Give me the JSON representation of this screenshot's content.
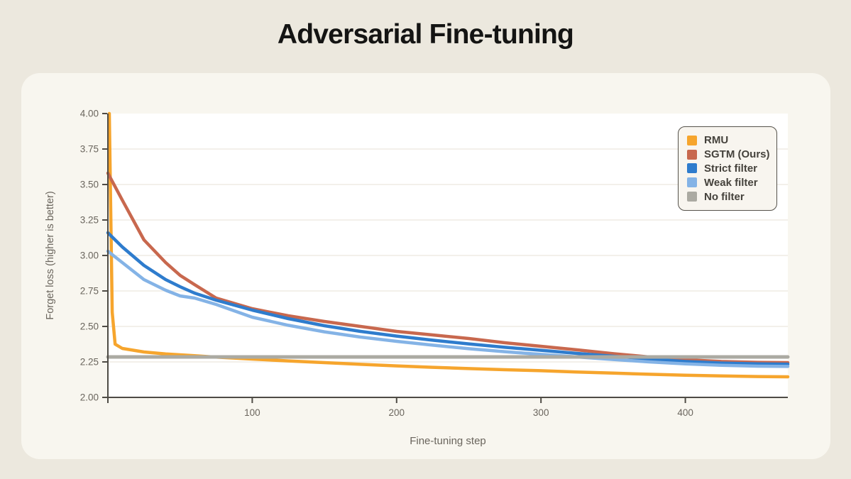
{
  "title": "Adversarial Fine-tuning",
  "chart_data": {
    "type": "line",
    "title": "Adversarial Fine-tuning",
    "xlabel": "Fine-tuning step",
    "ylabel": "Forget loss (higher is better)",
    "xlim": [
      0,
      471
    ],
    "ylim": [
      2.0,
      4.0
    ],
    "xticks": [
      100,
      200,
      300,
      400
    ],
    "xtick_labels": [
      "100",
      "200",
      "300",
      "400"
    ],
    "yticks": [
      4.0,
      3.75,
      3.5,
      3.25,
      3.0,
      2.75,
      2.5,
      2.25,
      2.0
    ],
    "ytick_labels": [
      "4.00",
      "3.75",
      "3.50",
      "3.25",
      "3.00",
      "2.75",
      "2.50",
      "2.25",
      "2.00"
    ],
    "grid": "horizontal",
    "legend_position": "top-right",
    "series": [
      {
        "name": "RMU",
        "color": "#F6A52D",
        "x": [
          1,
          3,
          5,
          10,
          25,
          40,
          50,
          60,
          75,
          100,
          125,
          150,
          175,
          200,
          225,
          250,
          275,
          300,
          325,
          350,
          375,
          400,
          425,
          450,
          471
        ],
        "y": [
          4.0,
          2.6,
          2.375,
          2.345,
          2.32,
          2.306,
          2.3,
          2.294,
          2.284,
          2.27,
          2.257,
          2.245,
          2.233,
          2.222,
          2.212,
          2.203,
          2.195,
          2.188,
          2.179,
          2.171,
          2.163,
          2.156,
          2.151,
          2.147,
          2.145
        ]
      },
      {
        "name": "SGTM (Ours)",
        "color": "#C8684E",
        "x": [
          0,
          10,
          25,
          40,
          50,
          60,
          75,
          100,
          125,
          150,
          175,
          200,
          225,
          250,
          275,
          300,
          325,
          350,
          375,
          400,
          425,
          450,
          471
        ],
        "y": [
          3.58,
          3.39,
          3.11,
          2.95,
          2.86,
          2.795,
          2.7,
          2.625,
          2.575,
          2.535,
          2.5,
          2.465,
          2.44,
          2.415,
          2.385,
          2.36,
          2.335,
          2.308,
          2.285,
          2.265,
          2.253,
          2.247,
          2.245
        ]
      },
      {
        "name": "Strict filter",
        "color": "#2E7CCD",
        "x": [
          0,
          10,
          25,
          40,
          50,
          60,
          75,
          100,
          125,
          150,
          175,
          200,
          225,
          250,
          275,
          300,
          325,
          350,
          375,
          400,
          425,
          450,
          471
        ],
        "y": [
          3.16,
          3.06,
          2.93,
          2.83,
          2.78,
          2.735,
          2.685,
          2.615,
          2.555,
          2.505,
          2.465,
          2.432,
          2.403,
          2.377,
          2.353,
          2.332,
          2.31,
          2.29,
          2.27,
          2.253,
          2.242,
          2.236,
          2.234
        ]
      },
      {
        "name": "Weak filter",
        "color": "#84B3E6",
        "x": [
          0,
          10,
          25,
          40,
          50,
          60,
          75,
          100,
          125,
          150,
          175,
          200,
          225,
          250,
          275,
          300,
          325,
          350,
          375,
          400,
          425,
          450,
          471
        ],
        "y": [
          3.03,
          2.95,
          2.83,
          2.755,
          2.715,
          2.7,
          2.655,
          2.565,
          2.508,
          2.462,
          2.425,
          2.395,
          2.368,
          2.343,
          2.322,
          2.303,
          2.285,
          2.267,
          2.25,
          2.236,
          2.226,
          2.22,
          2.218
        ]
      },
      {
        "name": "No filter",
        "color": "#ABAAA2",
        "x": [
          0,
          471
        ],
        "y": [
          2.285,
          2.285
        ]
      }
    ]
  },
  "colors": {
    "page_background": "#ECE8DE",
    "card_background": "#F8F6EF",
    "plot_background": "#FFFFFF",
    "gridline": "#EFECE4",
    "spine": "#4E4B45",
    "tick_label": "#6A655D",
    "axis_label": "#6A655D",
    "title_text": "#141413",
    "legend_border": "#55524B",
    "legend_text": "#45423C"
  }
}
